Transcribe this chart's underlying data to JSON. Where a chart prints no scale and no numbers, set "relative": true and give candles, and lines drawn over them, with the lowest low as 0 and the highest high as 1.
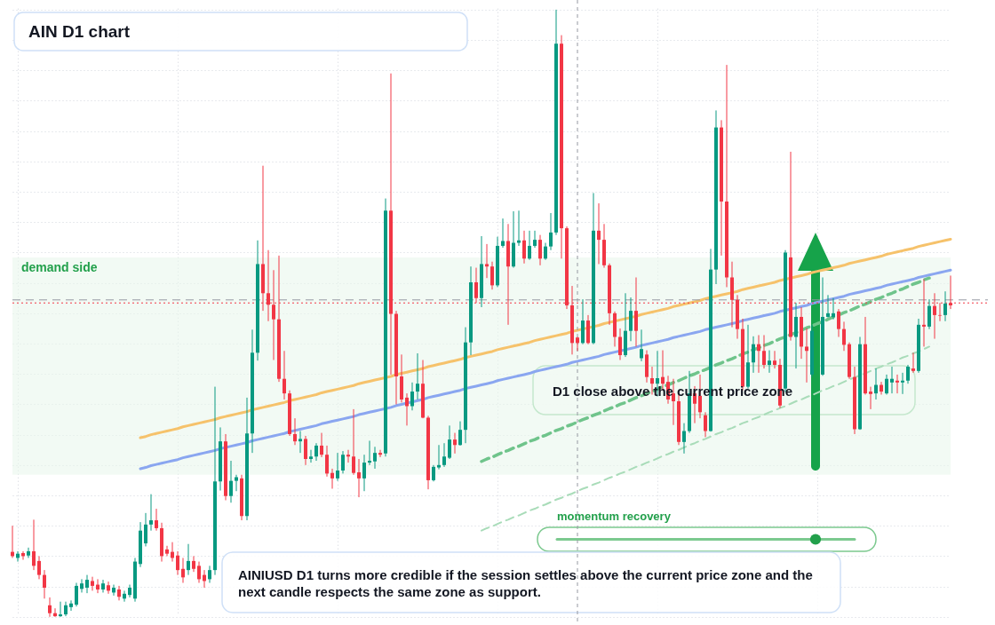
{
  "chart_data": {
    "type": "candlestick",
    "title": "AIN D1 chart",
    "annotations": [
      "D1 close above the current price zone",
      "momentum recovery",
      "AINIUSD D1 turns more credible if the session settles above the current price zone and the next candle respects the same zone as support."
    ],
    "relative": true,
    "grid": true,
    "categories": [
      null,
      null,
      null,
      null,
      null,
      null,
      null,
      null,
      null,
      null,
      null,
      null,
      null,
      null,
      null,
      null,
      null,
      null,
      null,
      null,
      null,
      null,
      null,
      null,
      null,
      null,
      null,
      null,
      null,
      null,
      null,
      null,
      null,
      null,
      null,
      null,
      null,
      null,
      null,
      null,
      null,
      null,
      null,
      null,
      null,
      null,
      null,
      null,
      null,
      null,
      null,
      null,
      null,
      null,
      null,
      null,
      null,
      null,
      null,
      null,
      null,
      null,
      null,
      null,
      null,
      null,
      null,
      null,
      null,
      null,
      null,
      null,
      null,
      null,
      null,
      null,
      null,
      null,
      null,
      null,
      null,
      null,
      null,
      null,
      null,
      null,
      null,
      null,
      null,
      null,
      null,
      null,
      null,
      null,
      null,
      null,
      null,
      null,
      null,
      null,
      null,
      null,
      null,
      null,
      null,
      null,
      null,
      null,
      null,
      null,
      null,
      null,
      null,
      null,
      null,
      null,
      null,
      null,
      null,
      null,
      null,
      null,
      null,
      null,
      null,
      null,
      null,
      null,
      null,
      null,
      null,
      null,
      null,
      null,
      null,
      null,
      null,
      null,
      null,
      null,
      null,
      null,
      null,
      null,
      null,
      null,
      null,
      null,
      null,
      null,
      null,
      null,
      null,
      null,
      null,
      null,
      null,
      null,
      null,
      null,
      null,
      null,
      null,
      null,
      null,
      null,
      null,
      null,
      null,
      null,
      null,
      null,
      null,
      null,
      null,
      null,
      null
    ],
    "ohlc": [
      [
        0.107,
        0.15,
        0.097,
        0.1
      ],
      [
        0.097,
        0.108,
        0.091,
        0.104
      ],
      [
        0.105,
        0.108,
        0.094,
        0.1
      ],
      [
        0.101,
        0.114,
        0.097,
        0.108
      ],
      [
        0.108,
        0.16,
        0.077,
        0.084
      ],
      [
        0.092,
        0.1,
        0.062,
        0.069
      ],
      [
        0.069,
        0.077,
        0.03,
        0.048
      ],
      [
        0.019,
        0.032,
        0,
        0.006
      ],
      [
        0.006,
        0.014,
        0,
        0.001
      ],
      [
        0.001,
        0.025,
        0,
        0.004
      ],
      [
        0.004,
        0.025,
        0.001,
        0.019
      ],
      [
        0.016,
        0.027,
        0.01,
        0.022
      ],
      [
        0.02,
        0.056,
        0.017,
        0.051
      ],
      [
        0.046,
        0.062,
        0.04,
        0.055
      ],
      [
        0.048,
        0.069,
        0.039,
        0.061
      ],
      [
        0.059,
        0.066,
        0.043,
        0.051
      ],
      [
        0.053,
        0.062,
        0.039,
        0.045
      ],
      [
        0.045,
        0.061,
        0.04,
        0.055
      ],
      [
        0.052,
        0.058,
        0.038,
        0.043
      ],
      [
        0.04,
        0.053,
        0.035,
        0.048
      ],
      [
        0.045,
        0.051,
        0.027,
        0.033
      ],
      [
        0.03,
        0.043,
        0.025,
        0.038
      ],
      [
        0.036,
        0.053,
        0.032,
        0.048
      ],
      [
        0.03,
        0.097,
        0.025,
        0.091
      ],
      [
        0.087,
        0.156,
        0.082,
        0.142
      ],
      [
        0.121,
        0.171,
        0.116,
        0.152
      ],
      [
        0.152,
        0.202,
        0.142,
        0.159
      ],
      [
        0.159,
        0.178,
        0.142,
        0.146
      ],
      [
        0.146,
        0.155,
        0.091,
        0.1
      ],
      [
        0.111,
        0.117,
        0.1,
        0.104
      ],
      [
        0.107,
        0.123,
        0.091,
        0.097
      ],
      [
        0.101,
        0.108,
        0.069,
        0.077
      ],
      [
        0.079,
        0.097,
        0.056,
        0.065
      ],
      [
        0.077,
        0.12,
        0.069,
        0.092
      ],
      [
        0.092,
        0.1,
        0.074,
        0.079
      ],
      [
        0.084,
        0.091,
        0.056,
        0.062
      ],
      [
        0.069,
        0.077,
        0.048,
        0.059
      ],
      [
        0.062,
        0.084,
        0.056,
        0.077
      ],
      [
        0.077,
        0.379,
        0.069,
        0.223
      ],
      [
        0.223,
        0.312,
        0.208,
        0.289
      ],
      [
        0.289,
        0.301,
        0.192,
        0.199
      ],
      [
        0.199,
        0.257,
        0.188,
        0.224
      ],
      [
        0.224,
        0.234,
        0.207,
        0.23
      ],
      [
        0.228,
        0.234,
        0.159,
        0.166
      ],
      [
        0.166,
        0.361,
        0.159,
        0.302
      ],
      [
        0.302,
        0.473,
        0.27,
        0.435
      ],
      [
        0.435,
        0.62,
        0.422,
        0.581
      ],
      [
        0.581,
        0.743,
        0.504,
        0.533
      ],
      [
        0.533,
        0.604,
        0.487,
        0.514
      ],
      [
        0.514,
        0.571,
        0.423,
        0.49
      ],
      [
        0.49,
        0.595,
        0.387,
        0.392
      ],
      [
        0.392,
        0.438,
        0.358,
        0.368
      ],
      [
        0.368,
        0.373,
        0.298,
        0.301
      ],
      [
        0.301,
        0.327,
        0.283,
        0.289
      ],
      [
        0.289,
        0.306,
        0.27,
        0.293
      ],
      [
        0.293,
        0.298,
        0.25,
        0.26
      ],
      [
        0.26,
        0.275,
        0.254,
        0.264
      ],
      [
        0.264,
        0.286,
        0.257,
        0.282
      ],
      [
        0.282,
        0.303,
        0.263,
        0.267
      ],
      [
        0.267,
        0.282,
        0.231,
        0.236
      ],
      [
        0.237,
        0.244,
        0.211,
        0.228
      ],
      [
        0.228,
        0.27,
        0.224,
        0.241
      ],
      [
        0.241,
        0.273,
        0.236,
        0.267
      ],
      [
        0.267,
        0.275,
        0.254,
        0.264
      ],
      [
        0.264,
        0.342,
        0.234,
        0.237
      ],
      [
        0.238,
        0.26,
        0.197,
        0.228
      ],
      [
        0.228,
        0.267,
        0.207,
        0.254
      ],
      [
        0.254,
        0.29,
        0.25,
        0.257
      ],
      [
        0.256,
        0.28,
        0.244,
        0.27
      ],
      [
        0.27,
        0.275,
        0.263,
        0.267
      ],
      [
        0.269,
        0.689,
        0.264,
        0.669
      ],
      [
        0.669,
        0.895,
        0.399,
        0.499
      ],
      [
        0.499,
        0.504,
        0.35,
        0.396
      ],
      [
        0.396,
        0.432,
        0.353,
        0.358
      ],
      [
        0.361,
        0.368,
        0.315,
        0.347
      ],
      [
        0.347,
        0.386,
        0.34,
        0.371
      ],
      [
        0.371,
        0.434,
        0.358,
        0.384
      ],
      [
        0.384,
        0.423,
        0.327,
        0.328
      ],
      [
        0.328,
        0.331,
        0.21,
        0.225
      ],
      [
        0.225,
        0.25,
        0.223,
        0.247
      ],
      [
        0.246,
        0.283,
        0.243,
        0.25
      ],
      [
        0.25,
        0.286,
        0.247,
        0.264
      ],
      [
        0.262,
        0.315,
        0.26,
        0.292
      ],
      [
        0.292,
        0.303,
        0.269,
        0.283
      ],
      [
        0.283,
        0.322,
        0.282,
        0.308
      ],
      [
        0.308,
        0.477,
        0.286,
        0.452
      ],
      [
        0.452,
        0.577,
        0.431,
        0.551
      ],
      [
        0.551,
        0.575,
        0.517,
        0.525
      ],
      [
        0.525,
        0.627,
        0.51,
        0.581
      ],
      [
        0.581,
        0.614,
        0.558,
        0.577
      ],
      [
        0.577,
        0.585,
        0.539,
        0.546
      ],
      [
        0.546,
        0.626,
        0.543,
        0.611
      ],
      [
        0.611,
        0.656,
        0.608,
        0.619
      ],
      [
        0.619,
        0.647,
        0.481,
        0.577
      ],
      [
        0.577,
        0.668,
        0.575,
        0.616
      ],
      [
        0.616,
        0.669,
        0.611,
        0.62
      ],
      [
        0.62,
        0.636,
        0.582,
        0.59
      ],
      [
        0.59,
        0.636,
        0.588,
        0.611
      ],
      [
        0.611,
        0.636,
        0.608,
        0.621
      ],
      [
        0.621,
        0.629,
        0.579,
        0.59
      ],
      [
        0.59,
        0.616,
        0.588,
        0.61
      ],
      [
        0.61,
        0.665,
        0.604,
        0.633
      ],
      [
        0.633,
        1,
        0.629,
        0.944
      ],
      [
        0.944,
        0.958,
        0.59,
        0.64
      ],
      [
        0.64,
        0.643,
        0.507,
        0.513
      ],
      [
        0.513,
        0.545,
        0.432,
        0.451
      ],
      [
        0.46,
        0.461,
        0.438,
        0.451
      ],
      [
        0.451,
        0.523,
        0.449,
        0.488
      ],
      [
        0.488,
        0.497,
        0.449,
        0.451
      ],
      [
        0.451,
        0.698,
        0.449,
        0.636
      ],
      [
        0.636,
        0.681,
        0.581,
        0.621
      ],
      [
        0.621,
        0.647,
        0.575,
        0.579
      ],
      [
        0.579,
        0.582,
        0.481,
        0.5
      ],
      [
        0.5,
        0.503,
        0.445,
        0.461
      ],
      [
        0.461,
        0.475,
        0.423,
        0.431
      ],
      [
        0.431,
        0.533,
        0.428,
        0.471
      ],
      [
        0.471,
        0.526,
        0.454,
        0.504
      ],
      [
        0.504,
        0.559,
        0.445,
        0.471
      ],
      [
        0.426,
        0.473,
        0.421,
        0.441
      ],
      [
        0.432,
        0.439,
        0.386,
        0.395
      ],
      [
        0.393,
        0.412,
        0.366,
        0.384
      ],
      [
        0.384,
        0.438,
        0.363,
        0.393
      ],
      [
        0.395,
        0.439,
        0.373,
        0.384
      ],
      [
        0.387,
        0.397,
        0.351,
        0.358
      ],
      [
        0.368,
        0.392,
        0.316,
        0.355
      ],
      [
        0.355,
        0.366,
        0.283,
        0.288
      ],
      [
        0.288,
        0.319,
        0.269,
        0.306
      ],
      [
        0.306,
        0.405,
        0.303,
        0.368
      ],
      [
        0.368,
        0.38,
        0.319,
        0.351
      ],
      [
        0.364,
        0.399,
        0.327,
        0.337
      ],
      [
        0.332,
        0.337,
        0.296,
        0.306
      ],
      [
        0.306,
        0.606,
        0.305,
        0.572
      ],
      [
        0.572,
        0.834,
        0.548,
        0.806
      ],
      [
        0.806,
        0.818,
        0.595,
        0.684
      ],
      [
        0.684,
        0.909,
        0.543,
        0.559
      ],
      [
        0.559,
        0.585,
        0.477,
        0.522
      ],
      [
        0.522,
        0.53,
        0.458,
        0.474
      ],
      [
        0.474,
        0.491,
        0.373,
        0.379
      ],
      [
        0.379,
        0.481,
        0.376,
        0.419
      ],
      [
        0.419,
        0.462,
        0.402,
        0.449
      ],
      [
        0.449,
        0.464,
        0.402,
        0.438
      ],
      [
        0.438,
        0.464,
        0.409,
        0.415
      ],
      [
        0.415,
        0.439,
        0.402,
        0.422
      ],
      [
        0.422,
        0.438,
        0.409,
        0.415
      ],
      [
        0.415,
        0.425,
        0.344,
        0.348
      ],
      [
        0.376,
        0.604,
        0.37,
        0.6
      ],
      [
        0.592,
        0.766,
        0.455,
        0.461
      ],
      [
        0.461,
        0.517,
        0.409,
        0.494
      ],
      [
        0.494,
        0.51,
        0.425,
        0.445
      ],
      [
        0.445,
        0.475,
        0.386,
        0.438
      ],
      [
        0.399,
        0.481,
        0.395,
        0.471
      ],
      null,
      [
        0.399,
        0.559,
        0.397,
        0.494
      ],
      [
        0.494,
        0.53,
        0.493,
        0.5
      ],
      [
        0.494,
        0.525,
        0.49,
        0.5
      ],
      [
        0.503,
        0.507,
        0.461,
        0.474
      ],
      [
        0.474,
        0.486,
        0.438,
        0.448
      ],
      [
        0.449,
        0.452,
        0.392,
        0.395
      ],
      [
        0.395,
        0.412,
        0.301,
        0.309
      ],
      [
        0.309,
        0.461,
        0.308,
        0.449
      ],
      [
        0.449,
        0.494,
        0.366,
        0.368
      ],
      [
        0.371,
        0.379,
        0.342,
        0.367
      ],
      [
        0.368,
        0.409,
        0.358,
        0.382
      ],
      [
        0.382,
        0.387,
        0.366,
        0.371
      ],
      [
        0.368,
        0.399,
        0.366,
        0.392
      ],
      [
        0.386,
        0.412,
        0.368,
        0.392
      ],
      [
        0.389,
        0.399,
        0.368,
        0.386
      ],
      [
        0.386,
        0.402,
        0.367,
        0.389
      ],
      [
        0.389,
        0.415,
        0.384,
        0.412
      ],
      [
        0.409,
        0.435,
        0.402,
        0.405
      ],
      [
        0.405,
        0.491,
        0.402,
        0.481
      ],
      [
        0.481,
        0.556,
        0.445,
        0.478
      ],
      [
        0.478,
        0.523,
        0.474,
        0.512
      ],
      [
        0.512,
        0.533,
        0.458,
        0.497
      ],
      [
        0.497,
        0.517,
        0.487,
        0.496
      ],
      [
        0.497,
        0.536,
        0.487,
        0.516
      ],
      [
        0.517,
        0.562,
        0.507,
        0.513
      ]
    ],
    "colors": [
      "#f23645",
      "#089981",
      "#f23645",
      "#089981",
      "#f23645",
      "#f23645",
      "#f23645",
      "#f23645",
      "#f23645",
      "#089981",
      "#089981",
      "#089981",
      "#089981",
      "#089981",
      "#089981",
      "#f23645",
      "#f23645",
      "#089981",
      "#f23645",
      "#089981",
      "#f23645",
      "#089981",
      "#089981",
      "#089981",
      "#089981",
      "#089981",
      "#089981",
      "#f23645",
      "#f23645",
      "#f23645",
      "#f23645",
      "#f23645",
      "#f23645",
      "#089981",
      "#f23645",
      "#f23645",
      "#f23645",
      "#089981",
      "#089981",
      "#089981",
      "#f23645",
      "#089981",
      "#089981",
      "#f23645",
      "#089981",
      "#089981",
      "#089981",
      "#f23645",
      "#f23645",
      "#f23645",
      "#f23645",
      "#f23645",
      "#f23645",
      "#f23645",
      "#089981",
      "#f23645",
      "#089981",
      "#089981",
      "#f23645",
      "#f23645",
      "#f23645",
      "#089981",
      "#089981",
      "#f23645",
      "#f23645",
      "#f23645",
      "#089981",
      "#089981",
      "#089981",
      "#f23645",
      "#089981",
      "#f23645",
      "#f23645",
      "#f23645",
      "#f23645",
      "#089981",
      "#089981",
      "#f23645",
      "#f23645",
      "#089981",
      "#089981",
      "#089981",
      "#089981",
      "#f23645",
      "#089981",
      "#089981",
      "#089981",
      "#f23645",
      "#089981",
      "#f23645",
      "#f23645",
      "#089981",
      "#089981",
      "#f23645",
      "#089981",
      "#089981",
      "#f23645",
      "#089981",
      "#089981",
      "#f23645",
      "#089981",
      "#089981",
      "#089981",
      "#f23645",
      "#f23645",
      "#f23645",
      "#f23645",
      "#089981",
      "#f23645",
      "#089981",
      "#f23645",
      "#f23645",
      "#f23645",
      "#f23645",
      "#f23645",
      "#089981",
      "#089981",
      "#f23645",
      "#089981",
      "#f23645",
      "#f23645",
      "#089981",
      "#f23645",
      "#f23645",
      "#f23645",
      "#f23645",
      "#089981",
      "#089981",
      "#f23645",
      "#f23645",
      "#f23645",
      "#089981",
      "#089981",
      "#f23645",
      "#f23645",
      "#f23645",
      "#f23645",
      "#f23645",
      "#089981",
      "#089981",
      "#f23645",
      "#f23645",
      "#089981",
      "#f23645",
      "#f23645",
      "#089981",
      "#f23645",
      "#089981",
      "#f23645",
      "#f23645",
      "#089981",
      null,
      "#089981",
      "#089981",
      "#089981",
      "#f23645",
      "#f23645",
      "#f23645",
      "#f23645",
      "#089981",
      "#f23645",
      "#f23645",
      "#089981",
      "#f23645",
      "#089981",
      "#089981",
      "#f23645",
      "#089981",
      "#089981",
      "#f23645",
      "#089981",
      "#f23645",
      "#089981",
      "#f23645",
      "#f23645",
      "#089981",
      "#f23645"
    ],
    "series": [
      {
        "type": "line",
        "color": "#f6c26b",
        "values": [
          null,
          null,
          null,
          null,
          null,
          null,
          null,
          null,
          null,
          null,
          null,
          null,
          null,
          null,
          null,
          null,
          null,
          null,
          null,
          null,
          null,
          null,
          null,
          null,
          0.295,
          0.297,
          0.3,
          0.302,
          0.304,
          0.306,
          0.308,
          0.31,
          0.313,
          0.315,
          0.317,
          0.319,
          0.321,
          0.323,
          0.325,
          0.328,
          0.33,
          0.332,
          0.334,
          0.336,
          0.338,
          0.341,
          0.343,
          0.345,
          0.347,
          0.349,
          0.351,
          0.353,
          0.356,
          0.358,
          0.36,
          0.362,
          0.364,
          0.366,
          0.369,
          0.371,
          0.373,
          0.375,
          0.377,
          0.379,
          0.381,
          0.384,
          0.386,
          0.388,
          0.39,
          0.392,
          0.394,
          0.396,
          0.399,
          0.401,
          0.403,
          0.405,
          0.407,
          0.409,
          0.412,
          0.414,
          0.416,
          0.418,
          0.42,
          0.422,
          0.424,
          0.427,
          0.429,
          0.431,
          0.433,
          0.435,
          0.437,
          0.44,
          0.442,
          0.444,
          0.446,
          0.448,
          0.45,
          0.452,
          0.455,
          0.457,
          0.459,
          0.461,
          0.463,
          0.465,
          0.467,
          0.47,
          0.472,
          0.474,
          0.476,
          0.478,
          0.48,
          0.483,
          0.485,
          0.487,
          0.489,
          0.491,
          0.493,
          0.495,
          0.498,
          0.5,
          0.502,
          0.504,
          0.506,
          0.508,
          0.511,
          0.513,
          0.515,
          0.517,
          0.519,
          0.521,
          0.524,
          0.526,
          0.528,
          0.53,
          0.532,
          0.534,
          0.536,
          0.539,
          0.541,
          0.543,
          0.545,
          0.547,
          0.549,
          0.551,
          0.554,
          0.556,
          0.558,
          0.56,
          0.562,
          0.564,
          0.567,
          0.569,
          0.571,
          0.573,
          0.575,
          0.577,
          0.579,
          0.582,
          0.584,
          0.586,
          0.588,
          0.59,
          0.592,
          0.594,
          0.597,
          0.599,
          0.601,
          0.603,
          0.605,
          0.607,
          0.61,
          0.612,
          0.614,
          0.616,
          0.618,
          0.62,
          0.622
        ]
      },
      {
        "type": "line",
        "color": "#8aa6f0",
        "values": [
          null,
          null,
          null,
          null,
          null,
          null,
          null,
          null,
          null,
          null,
          null,
          null,
          null,
          null,
          null,
          null,
          null,
          null,
          null,
          null,
          null,
          null,
          null,
          null,
          0.244,
          0.246,
          0.249,
          0.251,
          0.253,
          0.255,
          0.257,
          0.259,
          0.262,
          0.264,
          0.266,
          0.268,
          0.27,
          0.272,
          0.274,
          0.277,
          0.279,
          0.281,
          0.283,
          0.285,
          0.287,
          0.29,
          0.292,
          0.294,
          0.296,
          0.298,
          0.3,
          0.302,
          0.305,
          0.307,
          0.309,
          0.311,
          0.313,
          0.315,
          0.318,
          0.32,
          0.322,
          0.324,
          0.326,
          0.328,
          0.33,
          0.333,
          0.335,
          0.337,
          0.339,
          0.341,
          0.343,
          0.345,
          0.348,
          0.35,
          0.352,
          0.354,
          0.356,
          0.358,
          0.361,
          0.363,
          0.365,
          0.367,
          0.369,
          0.371,
          0.373,
          0.376,
          0.378,
          0.38,
          0.382,
          0.384,
          0.386,
          0.389,
          0.391,
          0.393,
          0.395,
          0.397,
          0.399,
          0.401,
          0.404,
          0.406,
          0.408,
          0.41,
          0.412,
          0.414,
          0.416,
          0.419,
          0.421,
          0.423,
          0.425,
          0.427,
          0.429,
          0.432,
          0.434,
          0.436,
          0.438,
          0.44,
          0.442,
          0.444,
          0.447,
          0.449,
          0.451,
          0.453,
          0.455,
          0.457,
          0.46,
          0.462,
          0.464,
          0.466,
          0.468,
          0.47,
          0.473,
          0.475,
          0.477,
          0.479,
          0.481,
          0.483,
          0.485,
          0.488,
          0.49,
          0.492,
          0.494,
          0.496,
          0.498,
          0.5,
          0.503,
          0.505,
          0.507,
          0.509,
          0.511,
          0.513,
          0.516,
          0.518,
          0.52,
          0.522,
          0.524,
          0.526,
          0.528,
          0.531,
          0.533,
          0.535,
          0.537,
          0.539,
          0.541,
          0.543,
          0.546,
          0.548,
          0.55,
          0.552,
          0.554,
          0.556,
          0.559,
          0.561,
          0.563,
          0.565,
          0.567,
          0.569,
          0.571
        ]
      },
      {
        "type": "line",
        "color": "#6fc48b",
        "line_style": "dashed",
        "values": [
          null,
          null,
          null,
          null,
          null,
          null,
          null,
          null,
          null,
          null,
          null,
          null,
          null,
          null,
          null,
          null,
          null,
          null,
          null,
          null,
          null,
          null,
          null,
          null,
          null,
          null,
          null,
          null,
          null,
          null,
          null,
          null,
          null,
          null,
          null,
          null,
          null,
          null,
          null,
          null,
          null,
          null,
          null,
          null,
          null,
          null,
          null,
          null,
          null,
          null,
          null,
          null,
          null,
          null,
          null,
          null,
          null,
          null,
          null,
          null,
          null,
          null,
          null,
          null,
          null,
          null,
          null,
          null,
          null,
          null,
          null,
          null,
          null,
          null,
          null,
          null,
          null,
          null,
          null,
          null,
          null,
          null,
          null,
          null,
          null,
          null,
          null,
          null,
          0.256,
          0.26,
          0.263,
          0.267,
          0.271,
          0.274,
          0.278,
          0.281,
          0.285,
          0.289,
          0.292,
          0.296,
          0.299,
          0.303,
          0.307,
          0.31,
          0.314,
          0.317,
          0.321,
          0.325,
          0.328,
          0.332,
          0.335,
          0.339,
          0.343,
          0.346,
          0.35,
          0.353,
          0.357,
          0.361,
          0.364,
          0.368,
          0.371,
          0.375,
          0.379,
          0.382,
          0.386,
          0.389,
          0.393,
          0.397,
          0.4,
          0.404,
          0.407,
          0.411,
          0.415,
          0.418,
          0.422,
          0.425,
          0.429,
          0.433,
          0.436,
          0.44,
          0.443,
          0.447,
          0.45,
          0.454,
          0.458,
          0.461,
          0.465,
          0.468,
          0.472,
          0.476,
          0.479,
          0.483,
          0.486,
          0.49,
          0.494,
          0.497,
          0.501,
          0.504,
          0.508,
          0.512,
          0.515,
          0.519,
          0.523,
          0.526,
          0.53,
          0.533,
          0.537,
          0.54,
          0.544,
          0.548,
          0.551,
          0.555,
          0.558,
          null,
          null,
          null,
          null
        ]
      },
      {
        "type": "line",
        "color": "#a9dcb9",
        "line_style": "dashed",
        "values": [
          null,
          null,
          null,
          null,
          null,
          null,
          null,
          null,
          null,
          null,
          null,
          null,
          null,
          null,
          null,
          null,
          null,
          null,
          null,
          null,
          null,
          null,
          null,
          null,
          null,
          null,
          null,
          null,
          null,
          null,
          null,
          null,
          null,
          null,
          null,
          null,
          null,
          null,
          null,
          null,
          null,
          null,
          null,
          null,
          null,
          null,
          null,
          null,
          null,
          null,
          null,
          null,
          null,
          null,
          null,
          null,
          null,
          null,
          null,
          null,
          null,
          null,
          null,
          null,
          null,
          null,
          null,
          null,
          null,
          null,
          null,
          null,
          null,
          null,
          null,
          null,
          null,
          null,
          null,
          null,
          null,
          null,
          null,
          null,
          null,
          null,
          null,
          null,
          0.142,
          0.146,
          0.149,
          0.153,
          0.157,
          0.16,
          0.164,
          0.167,
          0.171,
          0.175,
          0.178,
          0.182,
          0.185,
          0.189,
          0.193,
          0.196,
          0.2,
          0.203,
          0.207,
          0.211,
          0.214,
          0.218,
          0.221,
          0.225,
          0.229,
          0.232,
          0.236,
          0.239,
          0.243,
          0.247,
          0.25,
          0.254,
          0.257,
          0.261,
          0.265,
          0.268,
          0.272,
          0.275,
          0.279,
          0.283,
          0.286,
          0.29,
          0.293,
          0.297,
          0.301,
          0.304,
          0.308,
          0.311,
          0.315,
          0.319,
          0.322,
          0.326,
          0.329,
          0.333,
          0.337,
          0.34,
          0.344,
          0.347,
          0.351,
          0.355,
          0.358,
          0.362,
          0.365,
          0.369,
          0.373,
          0.376,
          0.38,
          0.383,
          0.387,
          0.391,
          0.394,
          0.398,
          0.401,
          0.405,
          0.409,
          0.412,
          0.416,
          0.419,
          0.423,
          0.427,
          0.43,
          0.434,
          0.437,
          0.441,
          0.445,
          null,
          null,
          null,
          null
        ]
      }
    ],
    "ref_lines": [
      {
        "axis": "y",
        "value": 0.522,
        "color": "#9598a1",
        "line_style": "dashed"
      },
      {
        "axis": "y",
        "value": 0.517,
        "color": "#f23645",
        "line_style": "dotted"
      }
    ],
    "bands": [
      {
        "axis": "y",
        "from": 0.234,
        "to": 0.592,
        "label": "demand side",
        "color": "#eaf6ed"
      }
    ]
  }
}
